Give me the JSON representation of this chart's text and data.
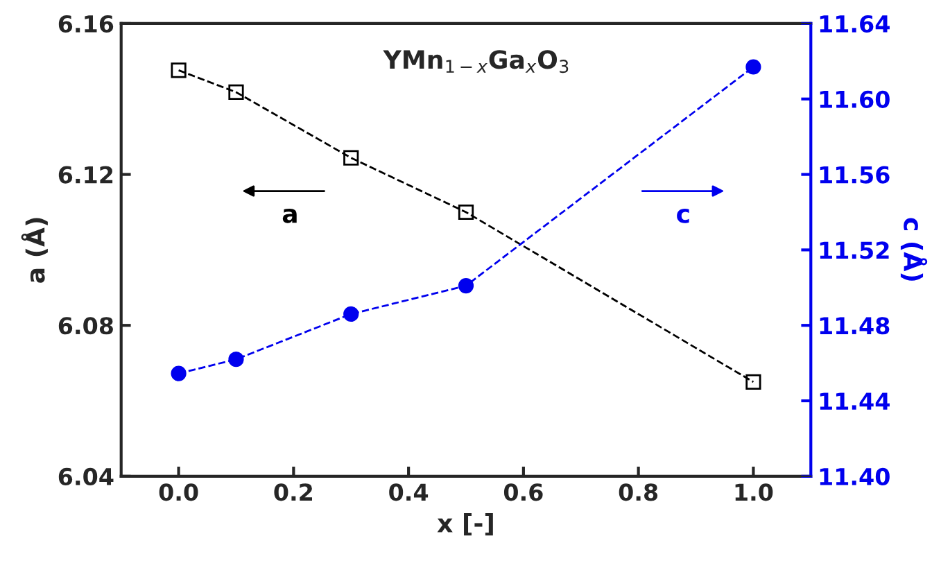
{
  "chart_data": {
    "type": "line",
    "xlabel": "x [-]",
    "ylabel": "a (Å)",
    "y2label": "c (Å)",
    "x": [
      0,
      0.1,
      0.3,
      0.5,
      1.0
    ],
    "series": [
      {
        "name": "a",
        "color": "#000000",
        "values": [
          6.1476,
          6.1418,
          6.1244,
          6.11,
          6.065
        ],
        "marker": "square",
        "line_style": "dashed"
      },
      {
        "name": "c",
        "color": "#0000ee",
        "values": [
          11.4545,
          11.462,
          11.486,
          11.501,
          11.617
        ],
        "marker": "circle",
        "line_style": "dashed",
        "axis": "y2"
      }
    ],
    "annotations": [
      "YMn$_{1−x}$Ga$_{x}$O$_{3}$"
    ],
    "xlim": [
      -0.1,
      1.1
    ],
    "xticks": [
      {
        "value": 0,
        "label": "0.0"
      },
      0.2,
      0.4,
      0.6,
      0.8,
      {
        "value": 1,
        "label": "1.0"
      }
    ],
    "ylim": [
      6.04,
      6.16
    ],
    "yticks": [
      6.04,
      6.08,
      6.12,
      6.16
    ],
    "y2lim": [
      11.4,
      11.64
    ],
    "y2ticks": [
      {
        "value": 11.4,
        "label": "11.40"
      },
      11.44,
      11.48,
      11.52,
      11.56,
      {
        "value": 11.6,
        "label": "11.60"
      },
      11.64
    ],
    "grid": false,
    "legend": "top"
  }
}
